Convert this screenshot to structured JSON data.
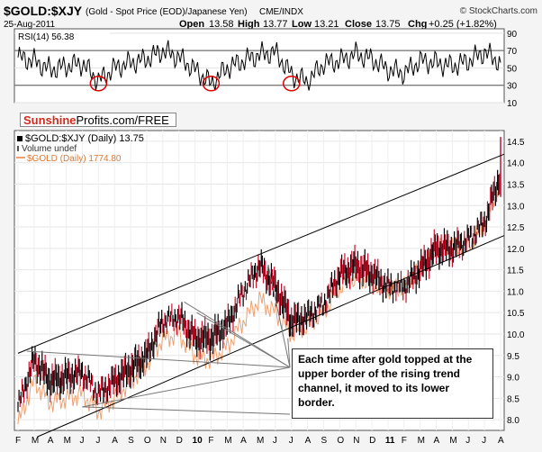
{
  "header": {
    "symbol": "$GOLD:$XJY",
    "description": "(Gold - Spot Price (EOD)/Japanese Yen)",
    "exchange": "CME/INDX",
    "date": "25-Aug-2011",
    "open_label": "Open",
    "open": "13.58",
    "high_label": "High",
    "high": "13.77",
    "low_label": "Low",
    "low": "13.21",
    "close_label": "Close",
    "close": "13.75",
    "chg_label": "Chg",
    "chg": "+0.25 (+1.82%)",
    "copyright": "© StockCharts.com"
  },
  "watermark": {
    "brand": "Sunshine",
    "rest": "Profits.com/FREE"
  },
  "colors": {
    "price_bar": "#000000",
    "down_bar": "#c8102e",
    "gold_line": "#f0a070",
    "rsi_line": "#000000",
    "circle": "#e00000",
    "brand_red": "#d12a1e"
  },
  "legend": {
    "price": "$GOLD:$XJY (Daily) 13.75",
    "volume": "Volume undef",
    "gold": "$GOLD (Daily) 1774.80"
  },
  "annotation": "Each time after gold topped at the upper border of the rising trend channel, it moved to its lower border.",
  "chart_data": [
    {
      "type": "line",
      "name": "rsi-panel",
      "title": "RSI(14) 56.38",
      "ylim": [
        10,
        95
      ],
      "yticks": [
        10,
        30,
        50,
        70,
        90
      ],
      "reference_lines": [
        30,
        70
      ],
      "x": [
        "2009-02",
        "2009-03",
        "2009-04",
        "2009-05",
        "2009-06",
        "2009-07",
        "2009-08",
        "2009-09",
        "2009-10",
        "2009-11",
        "2009-12",
        "2010-01",
        "2010-02",
        "2010-03",
        "2010-04",
        "2010-05",
        "2010-06",
        "2010-07",
        "2010-08",
        "2010-09",
        "2010-10",
        "2010-11",
        "2010-12",
        "2011-01",
        "2011-02",
        "2011-03",
        "2011-04",
        "2011-05",
        "2011-06",
        "2011-07",
        "2011-08"
      ],
      "series": [
        {
          "values": [
            62,
            58,
            48,
            52,
            55,
            35,
            50,
            56,
            60,
            70,
            62,
            48,
            32,
            50,
            58,
            65,
            68,
            42,
            34,
            55,
            58,
            66,
            60,
            48,
            44,
            58,
            56,
            52,
            58,
            68,
            56
          ]
        }
      ],
      "circled_lows": [
        "2009-07",
        "2010-02",
        "2010-07"
      ]
    },
    {
      "type": "line",
      "name": "price-panel",
      "ylim": [
        7.75,
        14.75
      ],
      "yticks": [
        8.0,
        8.5,
        9.0,
        9.5,
        10.0,
        10.5,
        11.0,
        11.5,
        12.0,
        12.5,
        13.0,
        13.5,
        14.0,
        14.5
      ],
      "x_tick_labels": [
        "F",
        "M",
        "A",
        "M",
        "J",
        "J",
        "A",
        "S",
        "O",
        "N",
        "D",
        "10",
        "F",
        "M",
        "A",
        "M",
        "J",
        "J",
        "A",
        "S",
        "O",
        "N",
        "D",
        "11",
        "F",
        "M",
        "A",
        "M",
        "J",
        "J",
        "A"
      ],
      "x": [
        "2009-02",
        "2009-03",
        "2009-04",
        "2009-05",
        "2009-06",
        "2009-07",
        "2009-08",
        "2009-09",
        "2009-10",
        "2009-11",
        "2009-12",
        "2010-01",
        "2010-02",
        "2010-03",
        "2010-04",
        "2010-05",
        "2010-06",
        "2010-07",
        "2010-08",
        "2010-09",
        "2010-10",
        "2010-11",
        "2010-12",
        "2011-01",
        "2011-02",
        "2011-03",
        "2011-04",
        "2011-05",
        "2011-06",
        "2011-07",
        "2011-08"
      ],
      "series": [
        {
          "name": "$GOLD:$XJY (Daily) 13.75",
          "values": [
            8.3,
            9.4,
            8.9,
            9.0,
            9.1,
            8.6,
            8.9,
            9.2,
            9.5,
            10.3,
            10.4,
            9.9,
            9.9,
            10.2,
            11.0,
            11.6,
            11.1,
            10.3,
            10.4,
            10.7,
            11.4,
            11.6,
            11.4,
            11.1,
            11.1,
            11.5,
            12.0,
            12.0,
            12.2,
            12.6,
            13.75
          ]
        },
        {
          "name": "$GOLD (Daily) 1774.80",
          "values": [
            7.9,
            8.9,
            8.4,
            8.5,
            8.6,
            8.2,
            8.5,
            8.9,
            9.3,
            9.9,
            10.0,
            9.5,
            9.4,
            9.7,
            10.3,
            10.8,
            10.5,
            10.0,
            10.2,
            10.5,
            11.1,
            11.3,
            11.2,
            11.0,
            11.1,
            11.5,
            12.0,
            12.0,
            12.1,
            12.5,
            13.6
          ]
        }
      ],
      "channel_upper": [
        [
          "2009-02",
          9.55
        ],
        [
          "2011-08",
          14.2
        ]
      ],
      "channel_lower": [
        [
          "2009-06",
          8.05
        ],
        [
          "2011-08",
          12.3
        ]
      ]
    }
  ]
}
